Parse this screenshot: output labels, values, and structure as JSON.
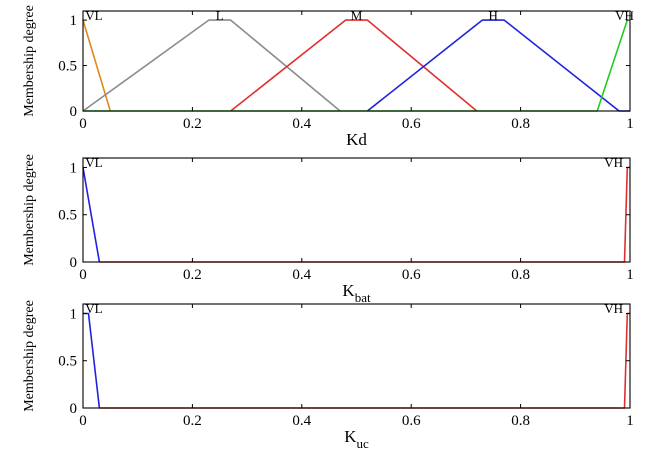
{
  "chart_data": [
    {
      "type": "line",
      "title": "",
      "xlabel": "Kd",
      "xlabel_sub": "",
      "ylabel": "Membership degree",
      "xlim": [
        0,
        1
      ],
      "ylim": [
        0,
        1.1
      ],
      "xticks": [
        "0",
        "0.2",
        "0.4",
        "0.6",
        "0.8",
        "1"
      ],
      "yticks": [
        "0",
        "0.5",
        "1"
      ],
      "term_labels": [
        {
          "text": "VL",
          "x": 0.02
        },
        {
          "text": "L",
          "x": 0.25
        },
        {
          "text": "M",
          "x": 0.5
        },
        {
          "text": "H",
          "x": 0.75
        },
        {
          "text": "VH",
          "x": 0.99
        }
      ],
      "series": [
        {
          "color": "#e08a1e",
          "x": [
            0,
            0.05
          ],
          "y": [
            1,
            0
          ]
        },
        {
          "color": "#8c8c8c",
          "x": [
            0,
            0.23,
            0.27,
            0.47
          ],
          "y": [
            0,
            1,
            1,
            0
          ]
        },
        {
          "color": "#e03030",
          "x": [
            0.27,
            0.48,
            0.52,
            0.72
          ],
          "y": [
            0,
            1,
            1,
            0
          ]
        },
        {
          "color": "#2222dd",
          "x": [
            0.52,
            0.73,
            0.77,
            0.98,
            1.0
          ],
          "y": [
            0,
            1,
            1,
            0,
            0
          ]
        },
        {
          "color": "#22cc22",
          "x": [
            0,
            0.94,
            0.995
          ],
          "y": [
            0,
            0,
            1
          ]
        }
      ]
    },
    {
      "type": "line",
      "title": "",
      "xlabel": "K",
      "xlabel_sub": "bat",
      "ylabel": "Membership degree",
      "xlim": [
        0,
        1
      ],
      "ylim": [
        0,
        1.1
      ],
      "xticks": [
        "0",
        "0.2",
        "0.4",
        "0.6",
        "0.8",
        "1"
      ],
      "yticks": [
        "0",
        "0.5",
        "1"
      ],
      "term_labels": [
        {
          "text": "VL",
          "x": 0.02
        },
        {
          "text": "VH",
          "x": 0.97
        }
      ],
      "series": [
        {
          "color": "#2222dd",
          "x": [
            0,
            0.03
          ],
          "y": [
            1,
            0
          ]
        },
        {
          "color": "#e03030",
          "x": [
            0.03,
            0.99,
            0.995,
            1.0
          ],
          "y": [
            0,
            0,
            1,
            1
          ]
        }
      ]
    },
    {
      "type": "line",
      "title": "",
      "xlabel": "K",
      "xlabel_sub": "uc",
      "ylabel": "Membership degree",
      "xlim": [
        0,
        1
      ],
      "ylim": [
        0,
        1.1
      ],
      "xticks": [
        "0",
        "0.2",
        "0.4",
        "0.6",
        "0.8",
        "1"
      ],
      "yticks": [
        "0",
        "0.5",
        "1"
      ],
      "term_labels": [
        {
          "text": "VL",
          "x": 0.02
        },
        {
          "text": "VH",
          "x": 0.97
        }
      ],
      "series": [
        {
          "color": "#2222dd",
          "x": [
            0,
            0.01,
            0.03
          ],
          "y": [
            1,
            1,
            0
          ]
        },
        {
          "color": "#e03030",
          "x": [
            0.03,
            0.99,
            0.995,
            1.0
          ],
          "y": [
            0,
            0,
            1,
            1
          ]
        }
      ]
    }
  ]
}
